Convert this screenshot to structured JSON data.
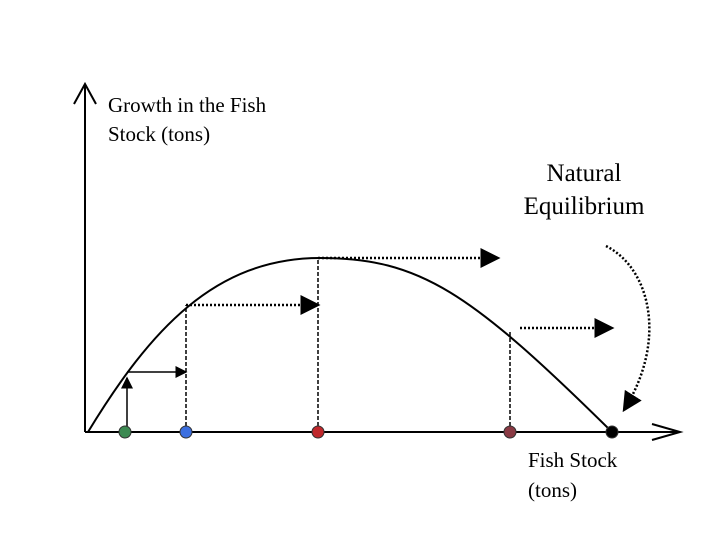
{
  "y_axis_label": {
    "lines": [
      "Growth in the Fish",
      "Stock (tons)"
    ]
  },
  "annotation": {
    "lines": [
      "Natural",
      "Equilibrium"
    ]
  },
  "x_axis_label": {
    "lines": [
      "Fish Stock",
      "(tons)"
    ]
  }
}
